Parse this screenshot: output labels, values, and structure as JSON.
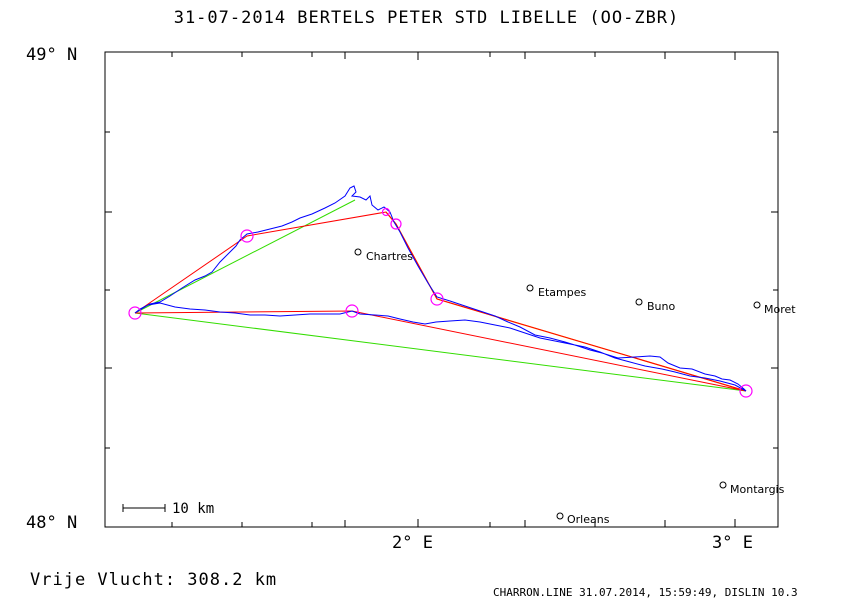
{
  "header": {
    "title": "31-07-2014   BERTELS PETER   STD LIBELLE (OO-ZBR)"
  },
  "axes": {
    "lat_top": "49° N",
    "lat_bottom": "48° N",
    "lon_2": "2° E",
    "lon_3": "3° E"
  },
  "scale_bar": {
    "label": "10 km"
  },
  "cities": [
    {
      "name": "Chartres"
    },
    {
      "name": "Etampes"
    },
    {
      "name": "Buno"
    },
    {
      "name": "Moret"
    },
    {
      "name": "Montargis"
    },
    {
      "name": "Orleans"
    }
  ],
  "footer": {
    "distance_text": "Vrije Vlucht:  308.2 km",
    "info_text": "CHARRON.LINE 31.07.2014, 15:59:49, DISLIN 10.3"
  },
  "colors": {
    "track": "#0000ff",
    "task_line": "#ff0000",
    "alt_line": "#33dd00",
    "orange_line": "#ff9900",
    "turnpoint": "#ff00ff"
  }
}
